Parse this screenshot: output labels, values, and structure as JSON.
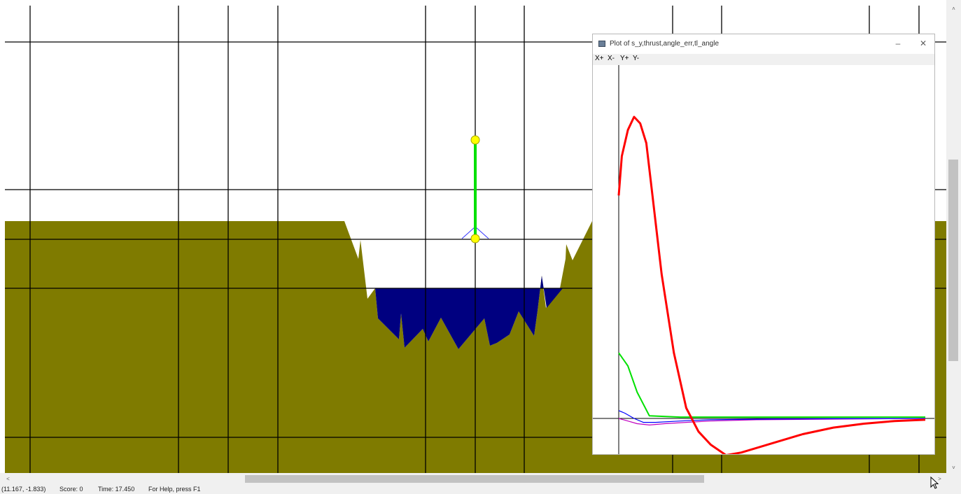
{
  "colors": {
    "ground": "#7f7b00",
    "water": "#000080",
    "grid": "#000000",
    "rocket_body": "#00e000",
    "rocket_node": "#ffff00",
    "thrust_cone": "#3333ff",
    "series_red": "#ff0000",
    "series_green": "#00e000",
    "series_blue": "#0000ff",
    "series_magenta": "#c000c0"
  },
  "plot_window": {
    "title": "Plot of s_y,thrust,angle_err,tl_angle",
    "icon": "window-icon",
    "minimize_glyph": "–",
    "close_glyph": "✕",
    "toolbar": [
      "X+",
      "X-",
      "Y+",
      "Y-"
    ]
  },
  "plot": {
    "series": [
      {
        "color": "red",
        "x": [
          0,
          0.01,
          0.03,
          0.05,
          0.07,
          0.09,
          0.11,
          0.14,
          0.18,
          0.22,
          0.26,
          0.3,
          0.35,
          0.4,
          0.5,
          0.6,
          0.7,
          0.8,
          0.9,
          1.0
        ],
        "y": [
          170,
          200,
          220,
          230,
          225,
          210,
          170,
          110,
          50,
          8,
          -10,
          -20,
          -28,
          -26,
          -19,
          -12,
          -7,
          -4,
          -2,
          -1
        ]
      },
      {
        "color": "green",
        "x": [
          0,
          0.03,
          0.06,
          0.1,
          0.2,
          0.4,
          0.6,
          0.8,
          1.0
        ],
        "y": [
          50,
          40,
          20,
          2,
          1,
          1,
          1,
          1,
          1
        ]
      },
      {
        "color": "blue",
        "x": [
          0,
          0.02,
          0.05,
          0.08,
          0.12,
          0.2,
          0.3,
          0.5,
          0.7,
          1.0
        ],
        "y": [
          6,
          4,
          0,
          -3,
          -3,
          -2,
          -1,
          -0.5,
          -0.2,
          0
        ]
      },
      {
        "color": "magenta",
        "x": [
          0,
          0.03,
          0.06,
          0.1,
          0.15,
          0.22,
          0.3,
          0.45,
          1.0
        ],
        "y": [
          0,
          -2,
          -4,
          -5,
          -4,
          -3,
          -2,
          -1,
          0
        ]
      }
    ]
  },
  "status_bar": {
    "coords": "(11.167, -1.833)",
    "score": "Score:     0",
    "time": "Time: 17.450",
    "help": "For Help, press F1"
  },
  "scroll": {
    "up_arrow": "˄",
    "down_arrow": "˅",
    "left_arrow": "˂",
    "right_arrow": "˃"
  }
}
